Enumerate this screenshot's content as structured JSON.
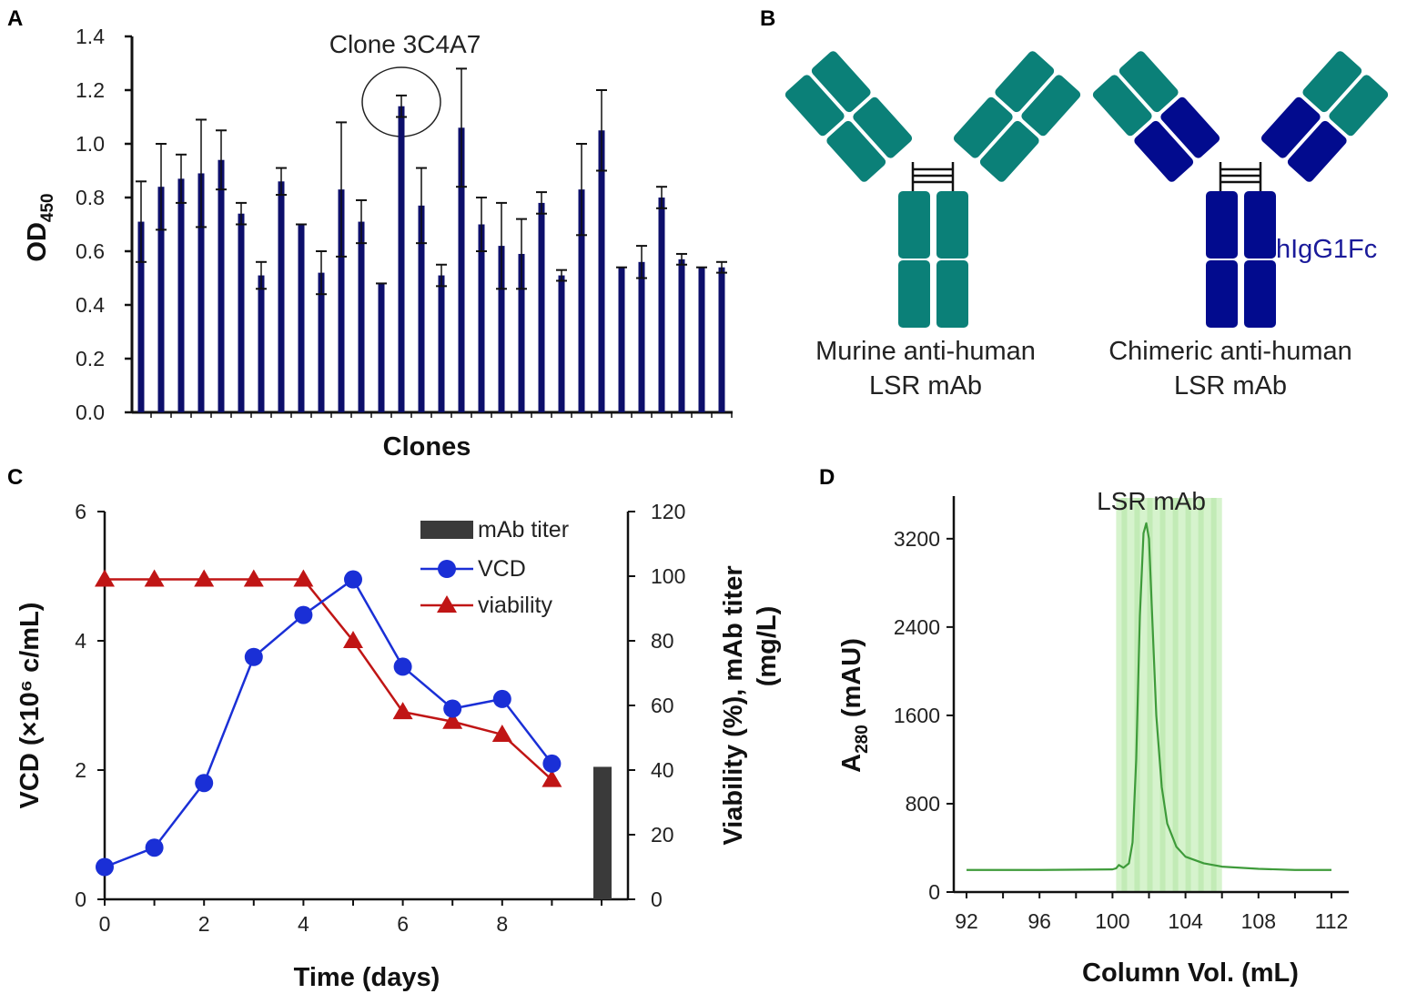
{
  "panel_labels": [
    "A",
    "B",
    "C",
    "D"
  ],
  "colors": {
    "bar": "#0d0f6b",
    "teal": "#0b8078",
    "navy": "#020b8e",
    "vcd": "#1a2fd6",
    "viability": "#c01515",
    "titer": "#3a3a3a",
    "sec_line": "#3e9b3a",
    "sec_fill": "#d6f3cd",
    "sec_stripe": "#c2ebb6"
  },
  "chart_data": [
    {
      "type": "bar",
      "panel": "A",
      "title": "",
      "annotation": "Clone 3C4A7",
      "annotated_index": 13,
      "xlabel": "Clones",
      "ylabel_main": "OD",
      "ylabel_sub": "450",
      "ylim": [
        0,
        1.4
      ],
      "yticks": [
        "0.0",
        "0.2",
        "0.4",
        "0.6",
        "0.8",
        "1.0",
        "1.2",
        "1.4"
      ],
      "values": [
        0.71,
        0.84,
        0.87,
        0.89,
        0.94,
        0.74,
        0.51,
        0.86,
        0.7,
        0.52,
        0.83,
        0.71,
        0.48,
        1.14,
        0.77,
        0.51,
        1.06,
        0.7,
        0.62,
        0.59,
        0.78,
        0.51,
        0.83,
        1.05,
        0.54,
        0.56,
        0.8,
        0.57,
        0.54,
        0.54
      ],
      "errors": [
        0.15,
        0.16,
        0.09,
        0.2,
        0.11,
        0.04,
        0.05,
        0.05,
        0.0,
        0.08,
        0.25,
        0.08,
        0.0,
        0.04,
        0.14,
        0.04,
        0.22,
        0.1,
        0.16,
        0.13,
        0.04,
        0.02,
        0.17,
        0.15,
        0.0,
        0.06,
        0.04,
        0.02,
        0.0,
        0.02
      ]
    },
    {
      "type": "line",
      "panel": "C",
      "xlabel": "Time (days)",
      "ylabel_left": "VCD (×10⁶ c/mL)",
      "ylabel_right_1": "Viability (%), mAb titer",
      "ylabel_right_2": "(mg/L)",
      "xlim": [
        0,
        10.5
      ],
      "ylim_left": [
        0,
        6
      ],
      "ylim_right": [
        0,
        120
      ],
      "xticks": [
        "0",
        "2",
        "4",
        "6",
        "8"
      ],
      "yticks_left": [
        "0",
        "2",
        "4",
        "6"
      ],
      "yticks_right": [
        "0",
        "20",
        "40",
        "60",
        "80",
        "100",
        "120"
      ],
      "legend": {
        "placement": "top-right",
        "entries": [
          "mAb titer",
          "VCD",
          "viability"
        ]
      },
      "x": [
        0,
        1,
        2,
        3,
        4,
        5,
        6,
        7,
        8,
        9
      ],
      "series": [
        {
          "name": "VCD",
          "axis": "left",
          "marker": "circle",
          "values": [
            0.5,
            0.8,
            1.8,
            3.75,
            4.4,
            4.95,
            3.6,
            2.95,
            3.1,
            2.1
          ]
        },
        {
          "name": "viability",
          "axis": "right",
          "marker": "triangle",
          "values": [
            99,
            99,
            99,
            99,
            99,
            80,
            58,
            55,
            51,
            37
          ]
        }
      ],
      "bar": {
        "name": "mAb titer",
        "axis": "right",
        "x": 10,
        "value": 41
      }
    },
    {
      "type": "line",
      "panel": "D",
      "annotation": "LSR mAb",
      "xlabel": "Column Vol. (mL)",
      "ylabel_main": "A",
      "ylabel_sub": "280",
      "ylabel_rest": " (mAU)",
      "xlim": [
        91.3,
        113
      ],
      "ylim": [
        0,
        3600
      ],
      "xticks": [
        "92",
        "96",
        "100",
        "104",
        "108",
        "112"
      ],
      "yticks": [
        "0",
        "800",
        "1600",
        "2400",
        "3200"
      ],
      "fraction_range": [
        100.2,
        106
      ],
      "x": [
        92,
        96,
        100,
        100.2,
        100.35,
        100.6,
        100.9,
        101.1,
        101.3,
        101.5,
        101.7,
        101.85,
        102.0,
        102.2,
        102.4,
        102.7,
        103.0,
        103.5,
        104,
        105,
        106,
        108,
        110,
        112
      ],
      "y": [
        200,
        200,
        205,
        215,
        245,
        220,
        260,
        450,
        1200,
        2500,
        3250,
        3340,
        3200,
        2400,
        1600,
        950,
        620,
        410,
        320,
        260,
        230,
        210,
        200,
        200
      ]
    }
  ],
  "panel_b": {
    "murine_label_1": "Murine  anti-human",
    "murine_label_2": "LSR mAb",
    "chimeric_label_1": "Chimeric anti-human",
    "chimeric_label_2": "LSR mAb",
    "fc_label": "hIgG1Fc"
  }
}
